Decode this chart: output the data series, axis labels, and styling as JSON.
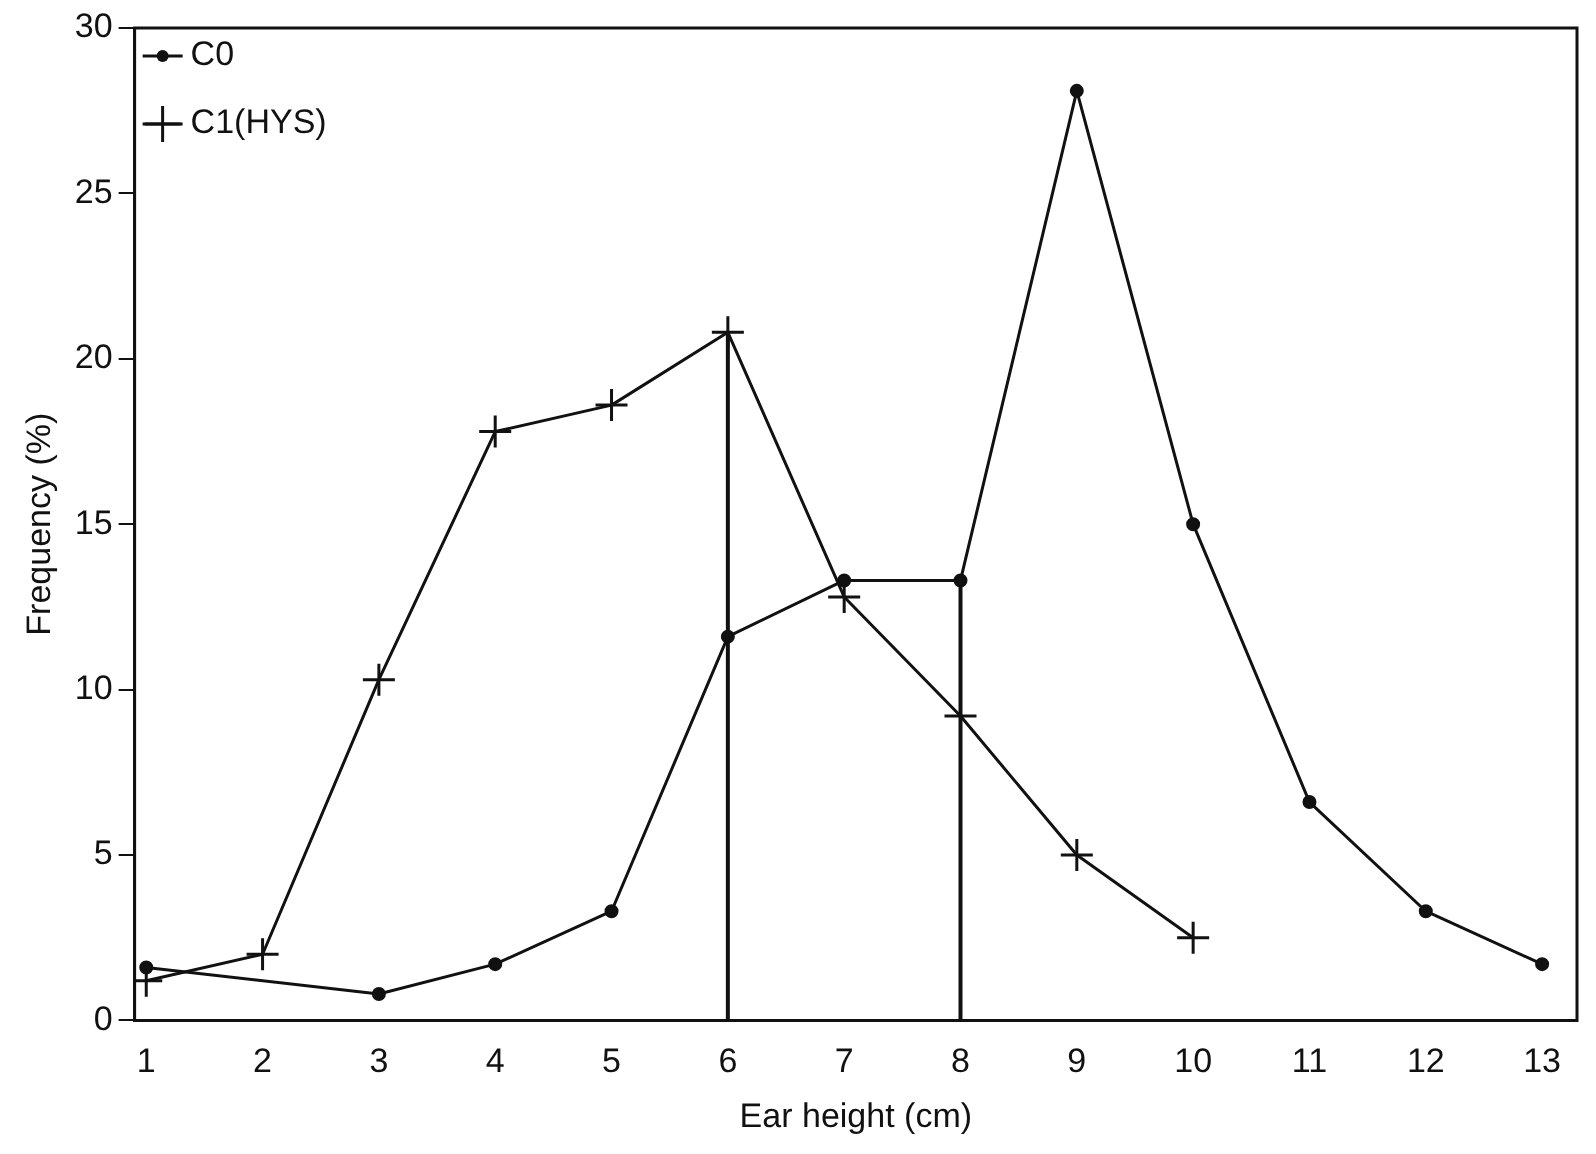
{
  "chart_data": {
    "type": "line",
    "xlabel": "Ear height (cm)",
    "ylabel": "Frequency (%)",
    "xlim": [
      0.9,
      13.3
    ],
    "xticks": [
      1,
      2,
      3,
      4,
      5,
      6,
      7,
      8,
      9,
      10,
      11,
      12,
      13
    ],
    "ylim": [
      0,
      30
    ],
    "yticks": [
      0,
      5,
      10,
      15,
      20,
      25,
      30
    ],
    "series": [
      {
        "name": "C0",
        "color": "#111111",
        "marker": "circle",
        "x": [
          1,
          3,
          4,
          5,
          6,
          7,
          8,
          9,
          10,
          11,
          12,
          13
        ],
        "values": [
          1.6,
          0.8,
          1.7,
          3.3,
          11.6,
          13.3,
          13.3,
          28.1,
          15.0,
          6.6,
          3.3,
          1.7
        ]
      },
      {
        "name": "C1(HYS)",
        "color": "#111111",
        "marker": "cross",
        "x": [
          1,
          2,
          3,
          4,
          5,
          6,
          7,
          8,
          9,
          10
        ],
        "values": [
          1.2,
          2.0,
          10.3,
          17.8,
          18.6,
          20.8,
          12.8,
          9.2,
          5.0,
          2.5
        ]
      }
    ],
    "ref_lines": [
      {
        "axis": "x",
        "value": 6,
        "color": "#111111"
      },
      {
        "axis": "x",
        "value": 8,
        "color": "#111111"
      }
    ],
    "grid": false,
    "legend": "top left",
    "line_style": "solid"
  }
}
